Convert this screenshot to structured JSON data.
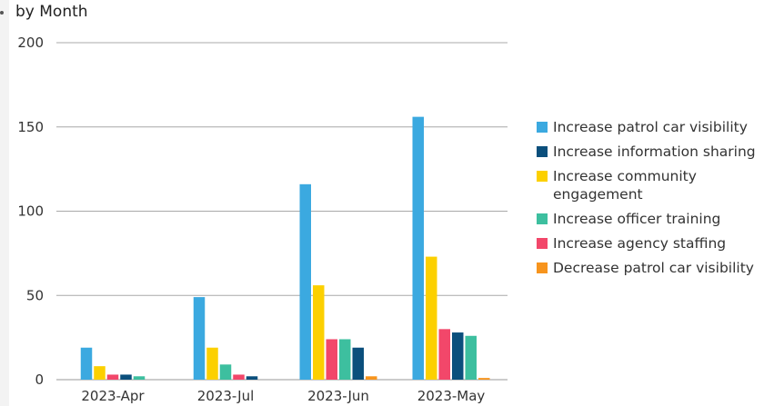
{
  "title": "by Month",
  "chart_data": {
    "type": "bar",
    "title": "by Month",
    "categories": [
      "2023-Apr",
      "2023-Jul",
      "2023-Jun",
      "2023-May"
    ],
    "ylim": [
      0,
      200
    ],
    "yticks": [
      0,
      50,
      100,
      150,
      200
    ],
    "grid": true,
    "legend_position": "right",
    "series": [
      {
        "name": "Increase patrol car visibility",
        "color": "#3ba9e0",
        "values": [
          19,
          49,
          116,
          156
        ]
      },
      {
        "name": "Increase information sharing",
        "color": "#0b4f7c",
        "values": [
          3,
          2,
          19,
          28
        ]
      },
      {
        "name": "Increase community engagement",
        "color": "#fcd000",
        "values": [
          8,
          19,
          56,
          73
        ]
      },
      {
        "name": "Increase officer training",
        "color": "#3dbf9f",
        "values": [
          2,
          9,
          24,
          26
        ]
      },
      {
        "name": "Increase agency staffing",
        "color": "#f2476a",
        "values": [
          3,
          3,
          24,
          30
        ]
      },
      {
        "name": "Decrease patrol car visibility",
        "color": "#f7941d",
        "values": [
          0,
          0,
          2,
          1
        ]
      }
    ],
    "bar_order": [
      [
        "Increase patrol car visibility",
        "Increase community engagement",
        "Increase agency staffing",
        "Increase information sharing",
        "Increase officer training",
        "Decrease patrol car visibility"
      ],
      [
        "Increase patrol car visibility",
        "Increase community engagement",
        "Increase officer training",
        "Increase agency staffing",
        "Increase information sharing",
        "Decrease patrol car visibility"
      ],
      [
        "Increase patrol car visibility",
        "Increase community engagement",
        "Increase agency staffing",
        "Increase officer training",
        "Increase information sharing",
        "Decrease patrol car visibility"
      ],
      [
        "Increase patrol car visibility",
        "Increase community engagement",
        "Increase agency staffing",
        "Increase information sharing",
        "Increase officer training",
        "Decrease patrol car visibility"
      ]
    ]
  }
}
